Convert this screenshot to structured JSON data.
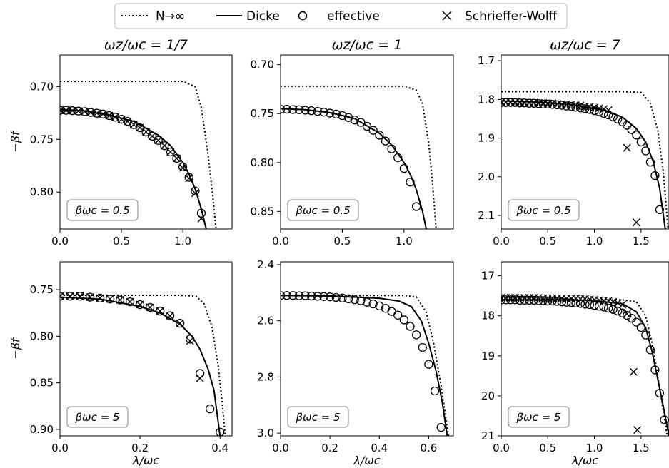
{
  "legend": {
    "entries": [
      {
        "label": "N→∞",
        "style": "dotted"
      },
      {
        "label": "Dicke",
        "style": "solid"
      },
      {
        "label": "effective",
        "style": "circle"
      },
      {
        "label": "Schrieffer-Wolff",
        "style": "cross"
      }
    ],
    "placement": "top-center"
  },
  "chart_data": [
    {
      "type": "line",
      "row": 0,
      "col": 0,
      "title": "ωz/ωc = 1/7",
      "xlabel": "",
      "ylabel": "−βf",
      "annotation": "βωc = 0.5",
      "xlim": [
        0.0,
        1.4
      ],
      "ylim": [
        0.67,
        0.835
      ],
      "y_inverted": true,
      "xticks": [
        0.0,
        0.5,
        1.0
      ],
      "xtick_labels": [
        "0.0",
        "0.5",
        "1.0"
      ],
      "yticks": [
        0.7,
        0.75,
        0.8
      ],
      "ytick_labels": [
        "0.70",
        "0.75",
        "0.80"
      ],
      "series": [
        {
          "style": "dotted",
          "x": [
            0,
            0.8,
            1.0,
            1.1,
            1.15,
            1.2,
            1.24,
            1.27
          ],
          "y": [
            0.695,
            0.695,
            0.695,
            0.7,
            0.72,
            0.76,
            0.8,
            0.835
          ]
        },
        {
          "style": "solid",
          "x": [
            0,
            0.2,
            0.4,
            0.6,
            0.8,
            0.9,
            1.0,
            1.05,
            1.1,
            1.15,
            1.19
          ],
          "y": [
            0.722,
            0.723,
            0.727,
            0.733,
            0.746,
            0.756,
            0.772,
            0.783,
            0.797,
            0.816,
            0.835
          ]
        },
        {
          "style": "circle",
          "x": [
            0,
            0.05,
            0.1,
            0.15,
            0.2,
            0.25,
            0.3,
            0.35,
            0.4,
            0.45,
            0.5,
            0.55,
            0.6,
            0.65,
            0.7,
            0.75,
            0.8,
            0.85,
            0.9,
            0.95,
            1.0,
            1.05,
            1.1,
            1.15
          ],
          "y": [
            0.7225,
            0.7225,
            0.7228,
            0.7232,
            0.7237,
            0.7245,
            0.7252,
            0.726,
            0.7275,
            0.729,
            0.731,
            0.733,
            0.736,
            0.739,
            0.743,
            0.747,
            0.751,
            0.756,
            0.762,
            0.768,
            0.776,
            0.786,
            0.799,
            0.82
          ]
        },
        {
          "style": "cross",
          "x": [
            0,
            0.05,
            0.1,
            0.15,
            0.2,
            0.25,
            0.3,
            0.35,
            0.4,
            0.45,
            0.5,
            0.55,
            0.6,
            0.65,
            0.7,
            0.75,
            0.8,
            0.85,
            0.9,
            0.95,
            1.0,
            1.05,
            1.1,
            1.15
          ],
          "y": [
            0.7225,
            0.7225,
            0.7228,
            0.7232,
            0.7237,
            0.7245,
            0.7252,
            0.726,
            0.7275,
            0.729,
            0.731,
            0.733,
            0.736,
            0.739,
            0.743,
            0.747,
            0.751,
            0.756,
            0.762,
            0.768,
            0.777,
            0.787,
            0.801,
            0.825
          ]
        }
      ]
    },
    {
      "type": "line",
      "row": 0,
      "col": 1,
      "title": "ωz/ωc = 1",
      "xlabel": "",
      "ylabel": "",
      "annotation": "βωc = 0.5",
      "xlim": [
        0.0,
        1.4
      ],
      "ylim": [
        0.69,
        0.868
      ],
      "y_inverted": true,
      "xticks": [
        0.0,
        0.5,
        1.0
      ],
      "xtick_labels": [
        "0.0",
        "0.5",
        "1.0"
      ],
      "yticks": [
        0.7,
        0.75,
        0.8,
        0.85
      ],
      "ytick_labels": [
        "0.70",
        "0.75",
        "0.80",
        "0.85"
      ],
      "series": [
        {
          "style": "dotted",
          "x": [
            0,
            0.8,
            1.0,
            1.1,
            1.15,
            1.2,
            1.23,
            1.26
          ],
          "y": [
            0.722,
            0.722,
            0.722,
            0.726,
            0.74,
            0.78,
            0.82,
            0.868
          ]
        },
        {
          "style": "solid",
          "x": [
            0,
            0.2,
            0.4,
            0.6,
            0.8,
            0.9,
            1.0,
            1.05,
            1.1,
            1.15,
            1.18
          ],
          "y": [
            0.745,
            0.746,
            0.749,
            0.755,
            0.77,
            0.782,
            0.8,
            0.812,
            0.828,
            0.85,
            0.868
          ]
        },
        {
          "style": "circle",
          "x": [
            0,
            0.05,
            0.1,
            0.15,
            0.2,
            0.25,
            0.3,
            0.35,
            0.4,
            0.45,
            0.5,
            0.55,
            0.6,
            0.65,
            0.7,
            0.75,
            0.8,
            0.85,
            0.9,
            0.95,
            1.0,
            1.05,
            1.1
          ],
          "y": [
            0.7455,
            0.7455,
            0.7458,
            0.746,
            0.7465,
            0.747,
            0.7477,
            0.7485,
            0.7495,
            0.7505,
            0.752,
            0.754,
            0.7565,
            0.759,
            0.763,
            0.767,
            0.772,
            0.778,
            0.786,
            0.795,
            0.806,
            0.82,
            0.845
          ]
        }
      ]
    },
    {
      "type": "line",
      "row": 0,
      "col": 2,
      "title": "ωz/ωc = 7",
      "xlabel": "",
      "ylabel": "",
      "annotation": "βωc = 0.5",
      "xlim": [
        0.0,
        1.8
      ],
      "ylim": [
        1.685,
        2.135
      ],
      "y_inverted": true,
      "xticks": [
        0.0,
        0.5,
        1.0,
        1.5
      ],
      "xtick_labels": [
        "0.0",
        "0.5",
        "1.0",
        "1.5"
      ],
      "yticks": [
        1.7,
        1.8,
        1.9,
        2.0,
        2.1
      ],
      "ytick_labels": [
        "1.7",
        "1.8",
        "1.9",
        "2.0",
        "2.1"
      ],
      "series": [
        {
          "style": "dotted",
          "x": [
            0,
            1.3,
            1.5,
            1.6,
            1.68,
            1.74,
            1.79
          ],
          "y": [
            1.78,
            1.78,
            1.782,
            1.81,
            1.88,
            1.99,
            2.135
          ]
        },
        {
          "style": "solid",
          "x": [
            0,
            0.4,
            0.8,
            1.1,
            1.3,
            1.45,
            1.55,
            1.63,
            1.7,
            1.76
          ],
          "y": [
            1.804,
            1.807,
            1.815,
            1.828,
            1.846,
            1.875,
            1.91,
            1.96,
            2.03,
            2.135
          ]
        },
        {
          "style": "circle",
          "x": [
            0,
            0.05,
            0.1,
            0.15,
            0.2,
            0.25,
            0.3,
            0.35,
            0.4,
            0.45,
            0.5,
            0.55,
            0.6,
            0.65,
            0.7,
            0.75,
            0.8,
            0.85,
            0.9,
            0.95,
            1.0,
            1.05,
            1.1,
            1.15,
            1.2,
            1.25,
            1.3,
            1.35,
            1.4,
            1.45,
            1.5,
            1.55,
            1.6,
            1.65,
            1.7
          ],
          "y": [
            1.808,
            1.808,
            1.808,
            1.808,
            1.809,
            1.809,
            1.81,
            1.81,
            1.811,
            1.812,
            1.812,
            1.813,
            1.814,
            1.815,
            1.817,
            1.818,
            1.82,
            1.822,
            1.824,
            1.826,
            1.829,
            1.832,
            1.836,
            1.84,
            1.845,
            1.851,
            1.858,
            1.867,
            1.878,
            1.892,
            1.91,
            1.933,
            1.962,
            1.997,
            2.085
          ]
        },
        {
          "style": "cross",
          "x": [
            0,
            0.05,
            0.1,
            0.15,
            0.2,
            0.25,
            0.3,
            0.35,
            0.4,
            0.45,
            0.5,
            0.55,
            0.6,
            0.65,
            0.7,
            0.75,
            0.8,
            0.85,
            0.9,
            0.95,
            1.0,
            1.05,
            1.1,
            1.15,
            1.35,
            1.45
          ],
          "y": [
            1.807,
            1.807,
            1.807,
            1.807,
            1.807,
            1.808,
            1.808,
            1.808,
            1.809,
            1.809,
            1.81,
            1.81,
            1.811,
            1.812,
            1.813,
            1.814,
            1.815,
            1.816,
            1.818,
            1.819,
            1.821,
            1.823,
            1.825,
            1.828,
            1.925,
            2.118
          ]
        }
      ]
    },
    {
      "type": "line",
      "row": 1,
      "col": 0,
      "title": "",
      "xlabel": "λ/ωc",
      "ylabel": "−βf",
      "annotation": "βωc = 5",
      "xlim": [
        0.0,
        0.43
      ],
      "ylim": [
        0.72,
        0.907
      ],
      "y_inverted": true,
      "xticks": [
        0.0,
        0.2,
        0.4
      ],
      "xtick_labels": [
        "0.0",
        "0.2",
        "0.4"
      ],
      "yticks": [
        0.75,
        0.8,
        0.85,
        0.9
      ],
      "ytick_labels": [
        "0.75",
        "0.80",
        "0.85",
        "0.90"
      ],
      "series": [
        {
          "style": "dotted",
          "x": [
            0,
            0.3,
            0.34,
            0.36,
            0.38,
            0.395,
            0.405,
            0.413
          ],
          "y": [
            0.756,
            0.756,
            0.757,
            0.765,
            0.79,
            0.83,
            0.87,
            0.907
          ]
        },
        {
          "style": "solid",
          "x": [
            0,
            0.1,
            0.2,
            0.25,
            0.3,
            0.33,
            0.35,
            0.37,
            0.385,
            0.4
          ],
          "y": [
            0.758,
            0.76,
            0.768,
            0.775,
            0.787,
            0.8,
            0.814,
            0.835,
            0.858,
            0.907
          ]
        },
        {
          "style": "circle",
          "x": [
            0,
            0.025,
            0.05,
            0.075,
            0.1,
            0.125,
            0.15,
            0.175,
            0.2,
            0.225,
            0.25,
            0.275,
            0.3,
            0.325,
            0.35,
            0.375,
            0.4
          ],
          "y": [
            0.757,
            0.757,
            0.757,
            0.758,
            0.759,
            0.76,
            0.761,
            0.763,
            0.766,
            0.769,
            0.773,
            0.778,
            0.786,
            0.803,
            0.84,
            0.878,
            0.903
          ]
        },
        {
          "style": "cross",
          "x": [
            0,
            0.025,
            0.05,
            0.075,
            0.1,
            0.125,
            0.15,
            0.175,
            0.2,
            0.225,
            0.25,
            0.275,
            0.3,
            0.325,
            0.35
          ],
          "y": [
            0.757,
            0.757,
            0.757,
            0.758,
            0.759,
            0.76,
            0.761,
            0.763,
            0.766,
            0.769,
            0.773,
            0.778,
            0.786,
            0.805,
            0.845
          ]
        }
      ]
    },
    {
      "type": "line",
      "row": 1,
      "col": 1,
      "title": "",
      "xlabel": "λ/ωc",
      "ylabel": "",
      "annotation": "βωc = 5",
      "xlim": [
        0.0,
        0.7
      ],
      "ylim": [
        2.39,
        3.01
      ],
      "y_inverted": true,
      "xticks": [
        0.0,
        0.2,
        0.4,
        0.6
      ],
      "xtick_labels": [
        "0.0",
        "0.2",
        "0.4",
        "0.6"
      ],
      "yticks": [
        2.4,
        2.6,
        2.8,
        3.0
      ],
      "ytick_labels": [
        "2.4",
        "2.6",
        "2.8",
        "3.0"
      ],
      "series": [
        {
          "style": "dotted",
          "x": [
            0,
            0.5,
            0.55,
            0.59,
            0.62,
            0.65,
            0.68
          ],
          "y": [
            2.51,
            2.51,
            2.515,
            2.57,
            2.68,
            2.83,
            3.01
          ]
        },
        {
          "style": "solid",
          "x": [
            0,
            0.2,
            0.4,
            0.48,
            0.53,
            0.57,
            0.6,
            0.63,
            0.655,
            0.675
          ],
          "y": [
            2.51,
            2.512,
            2.52,
            2.53,
            2.55,
            2.6,
            2.68,
            2.78,
            2.89,
            3.01
          ]
        },
        {
          "style": "circle",
          "x": [
            0,
            0.025,
            0.05,
            0.075,
            0.1,
            0.125,
            0.15,
            0.175,
            0.2,
            0.225,
            0.25,
            0.275,
            0.3,
            0.325,
            0.35,
            0.375,
            0.4,
            0.425,
            0.45,
            0.475,
            0.5,
            0.525,
            0.55,
            0.575,
            0.6,
            0.625,
            0.65
          ],
          "y": [
            2.51,
            2.51,
            2.51,
            2.511,
            2.511,
            2.512,
            2.513,
            2.514,
            2.515,
            2.517,
            2.519,
            2.522,
            2.525,
            2.529,
            2.534,
            2.54,
            2.547,
            2.556,
            2.567,
            2.58,
            2.597,
            2.62,
            2.65,
            2.695,
            2.755,
            2.85,
            2.98
          ]
        }
      ]
    },
    {
      "type": "line",
      "row": 1,
      "col": 2,
      "title": "",
      "xlabel": "λ/ωc",
      "ylabel": "",
      "annotation": "βωc = 5",
      "xlim": [
        0.0,
        1.8
      ],
      "ylim": [
        16.65,
        21.0
      ],
      "y_inverted": true,
      "xticks": [
        0.0,
        0.5,
        1.0,
        1.5
      ],
      "xtick_labels": [
        "0.0",
        "0.5",
        "1.0",
        "1.5"
      ],
      "yticks": [
        17,
        18,
        19,
        20,
        21
      ],
      "ytick_labels": [
        "17",
        "18",
        "19",
        "20",
        "21"
      ],
      "series": [
        {
          "style": "dotted",
          "x": [
            0,
            1.3,
            1.45,
            1.55,
            1.63,
            1.7,
            1.78
          ],
          "y": [
            17.6,
            17.6,
            17.65,
            18.0,
            18.8,
            19.8,
            21.0
          ]
        },
        {
          "style": "solid",
          "x": [
            0,
            0.5,
            1.0,
            1.3,
            1.45,
            1.55,
            1.62,
            1.69,
            1.75,
            1.8
          ],
          "y": [
            17.6,
            17.6,
            17.62,
            17.7,
            17.9,
            18.3,
            18.9,
            19.7,
            20.4,
            21.0
          ]
        },
        {
          "style": "circle",
          "x": [
            0,
            0.05,
            0.1,
            0.15,
            0.2,
            0.25,
            0.3,
            0.35,
            0.4,
            0.45,
            0.5,
            0.55,
            0.6,
            0.65,
            0.7,
            0.75,
            0.8,
            0.85,
            0.9,
            0.95,
            1.0,
            1.05,
            1.1,
            1.15,
            1.2,
            1.25,
            1.3,
            1.35,
            1.4,
            1.45,
            1.5,
            1.55,
            1.6,
            1.65,
            1.7,
            1.75
          ],
          "y": [
            17.6,
            17.6,
            17.6,
            17.6,
            17.61,
            17.61,
            17.61,
            17.61,
            17.62,
            17.62,
            17.63,
            17.63,
            17.64,
            17.65,
            17.66,
            17.67,
            17.68,
            17.69,
            17.71,
            17.72,
            17.74,
            17.76,
            17.78,
            17.81,
            17.84,
            17.88,
            17.93,
            17.99,
            18.06,
            18.16,
            18.29,
            18.48,
            18.85,
            19.35,
            19.93,
            20.6
          ]
        },
        {
          "style": "cross",
          "x": [
            0,
            0.05,
            0.1,
            0.15,
            0.2,
            0.25,
            0.3,
            0.35,
            0.4,
            0.45,
            0.5,
            0.55,
            0.6,
            0.65,
            0.7,
            0.75,
            0.8,
            0.85,
            0.9,
            0.95,
            1.0,
            1.05,
            1.1,
            1.15,
            1.2,
            1.25,
            1.3,
            1.35,
            1.42,
            1.46
          ],
          "y": [
            17.55,
            17.55,
            17.55,
            17.55,
            17.55,
            17.55,
            17.55,
            17.55,
            17.55,
            17.56,
            17.56,
            17.56,
            17.56,
            17.56,
            17.57,
            17.57,
            17.57,
            17.58,
            17.58,
            17.59,
            17.6,
            17.61,
            17.62,
            17.63,
            17.65,
            17.68,
            17.72,
            17.95,
            19.4,
            20.85
          ]
        }
      ]
    }
  ]
}
